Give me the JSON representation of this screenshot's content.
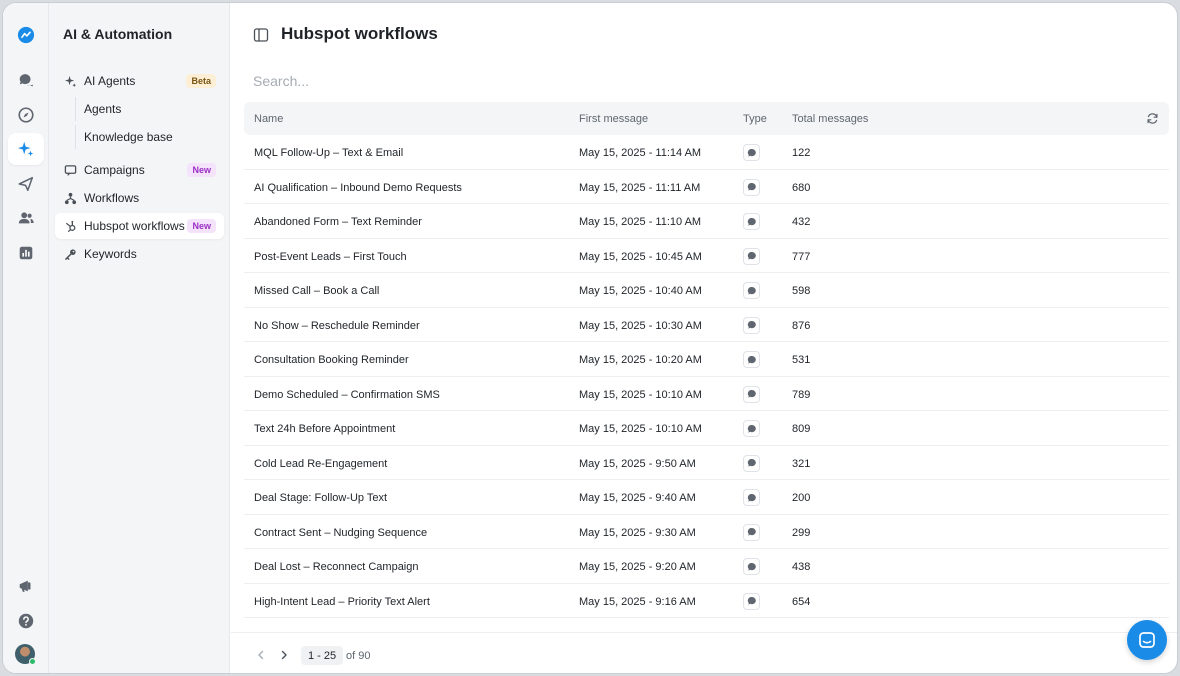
{
  "sidebar": {
    "title": "AI & Automation",
    "items": [
      {
        "label": "AI Agents",
        "badge": "Beta",
        "icon": "sparkle-icon"
      },
      {
        "label": "Campaigns",
        "badge": "New",
        "icon": "campaign-icon"
      },
      {
        "label": "Workflows",
        "badge": "",
        "icon": "workflow-icon"
      },
      {
        "label": "Hubspot workflows",
        "badge": "New",
        "icon": "hubspot-icon"
      },
      {
        "label": "Keywords",
        "badge": "",
        "icon": "key-icon"
      }
    ],
    "sub_items": [
      "Agents",
      "Knowledge base"
    ]
  },
  "header": {
    "title": "Hubspot workflows"
  },
  "search": {
    "placeholder": "Search..."
  },
  "table": {
    "columns": [
      "Name",
      "First message",
      "Type",
      "Total messages"
    ],
    "rows": [
      {
        "name": "MQL Follow-Up – Text & Email",
        "first_message": "May 15, 2025 - 11:14 AM",
        "type": "sms-icon",
        "total": "122"
      },
      {
        "name": "AI Qualification – Inbound Demo Requests",
        "first_message": "May 15, 2025 - 11:11 AM",
        "type": "sms-icon",
        "total": "680"
      },
      {
        "name": "Abandoned Form – Text Reminder",
        "first_message": "May 15, 2025 - 11:10 AM",
        "type": "sms-icon",
        "total": "432"
      },
      {
        "name": "Post-Event Leads – First Touch",
        "first_message": "May 15, 2025 - 10:45 AM",
        "type": "sms-icon",
        "total": "777"
      },
      {
        "name": "Missed Call – Book a Call",
        "first_message": "May 15, 2025 - 10:40 AM",
        "type": "sms-icon",
        "total": "598"
      },
      {
        "name": "No Show – Reschedule Reminder",
        "first_message": "May 15, 2025 - 10:30 AM",
        "type": "sms-icon",
        "total": "876"
      },
      {
        "name": "Consultation Booking Reminder",
        "first_message": "May 15, 2025 - 10:20 AM",
        "type": "sms-icon",
        "total": "531"
      },
      {
        "name": "Demo Scheduled – Confirmation SMS",
        "first_message": "May 15, 2025 - 10:10 AM",
        "type": "sms-icon",
        "total": "789"
      },
      {
        "name": "Text 24h Before Appointment",
        "first_message": "May 15, 2025 - 10:10 AM",
        "type": "sms-icon",
        "total": "809"
      },
      {
        "name": "Cold Lead Re-Engagement",
        "first_message": "May 15, 2025 - 9:50 AM",
        "type": "sms-icon",
        "total": "321"
      },
      {
        "name": "Deal Stage: Follow-Up Text",
        "first_message": "May 15, 2025 - 9:40 AM",
        "type": "sms-icon",
        "total": "200"
      },
      {
        "name": "Contract Sent – Nudging Sequence",
        "first_message": "May 15, 2025 - 9:30 AM",
        "type": "sms-icon",
        "total": "299"
      },
      {
        "name": "Deal Lost – Reconnect Campaign",
        "first_message": "May 15, 2025 - 9:20 AM",
        "type": "sms-icon",
        "total": "438"
      },
      {
        "name": "High-Intent Lead – Priority Text Alert",
        "first_message": "May 15, 2025 - 9:16 AM",
        "type": "sms-icon",
        "total": "654"
      }
    ]
  },
  "pagination": {
    "range": "1 - 25",
    "of": "of 90"
  },
  "colors": {
    "accent": "#1a8ce8",
    "beta_bg": "#fcefd6",
    "new_bg": "#f4e3fb",
    "new_text": "#9b2fc4"
  }
}
